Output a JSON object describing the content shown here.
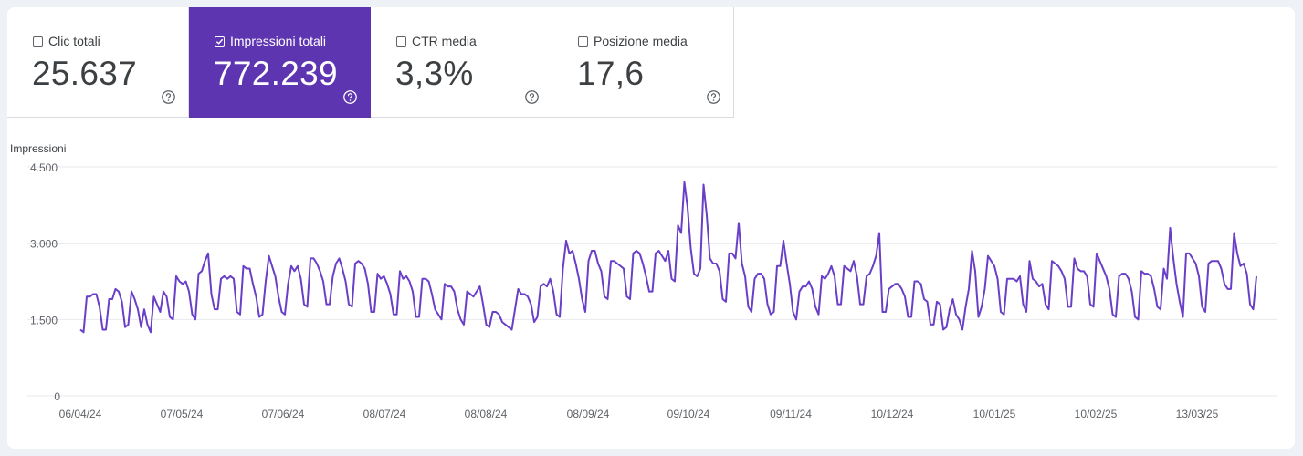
{
  "cards": [
    {
      "label": "Clic totali",
      "value": "25.637",
      "checked": false
    },
    {
      "label": "Impressioni totali",
      "value": "772.239",
      "checked": true
    },
    {
      "label": "CTR media",
      "value": "3,3%",
      "checked": false
    },
    {
      "label": "Posizione media",
      "value": "17,6",
      "checked": false
    }
  ],
  "colors": {
    "accent": "#5e35b1",
    "line": "#6a3fc8",
    "grid": "#e8eaed"
  },
  "icons": {
    "checkbox": "checkbox-icon",
    "help": "help-circle-icon"
  },
  "chart_data": {
    "type": "line",
    "ylabel": "Impressioni",
    "y_ticks": [
      "4.500",
      "3.000",
      "1.500",
      "0"
    ],
    "ylim": [
      0,
      4500
    ],
    "grid": true,
    "x_ticks": [
      "06/04/24",
      "07/05/24",
      "07/06/24",
      "08/07/24",
      "08/08/24",
      "08/09/24",
      "09/10/24",
      "09/11/24",
      "10/12/24",
      "10/01/25",
      "10/02/25",
      "13/03/25"
    ],
    "series": [
      {
        "values": [
          1300,
          1250,
          1950,
          1950,
          2000,
          2000,
          1750,
          1300,
          1300,
          1900,
          1900,
          2100,
          2050,
          1850,
          1350,
          1400,
          2050,
          1900,
          1700,
          1350,
          1700,
          1400,
          1250,
          1950,
          1800,
          1650,
          2050,
          1950,
          1550,
          1500,
          2350,
          2250,
          2200,
          2250,
          2050,
          1600,
          1500,
          2400,
          2450,
          2650,
          2800,
          2000,
          1700,
          1700,
          2300,
          2350,
          2300,
          2350,
          2300,
          1650,
          1600,
          2550,
          2500,
          2500,
          2200,
          1950,
          1550,
          1600,
          2250,
          2750,
          2550,
          2350,
          1950,
          1650,
          1600,
          2200,
          2550,
          2450,
          2550,
          2300,
          1800,
          1750,
          2700,
          2700,
          2600,
          2450,
          2250,
          1800,
          1800,
          2350,
          2600,
          2700,
          2500,
          2250,
          1800,
          1750,
          2600,
          2650,
          2600,
          2500,
          2200,
          1650,
          1650,
          2400,
          2300,
          2350,
          2200,
          2000,
          1600,
          1600,
          2450,
          2300,
          2350,
          2250,
          2050,
          1550,
          1550,
          2300,
          2300,
          2250,
          2000,
          1700,
          1600,
          1500,
          2200,
          2150,
          2150,
          2050,
          1700,
          1500,
          1400,
          2050,
          2000,
          1950,
          2050,
          2150,
          1800,
          1400,
          1350,
          1650,
          1650,
          1600,
          1450,
          1400,
          1350,
          1300,
          1700,
          2100,
          2000,
          2000,
          1950,
          1800,
          1450,
          1550,
          2150,
          2200,
          2150,
          2300,
          2050,
          1600,
          1550,
          2500,
          3050,
          2800,
          2850,
          2600,
          2300,
          1900,
          1650,
          2650,
          2850,
          2850,
          2600,
          2450,
          1950,
          1900,
          2650,
          2650,
          2600,
          2550,
          2500,
          1950,
          1900,
          2800,
          2850,
          2800,
          2600,
          2350,
          2050,
          2050,
          2800,
          2850,
          2750,
          2650,
          2850,
          2300,
          2250,
          3350,
          3200,
          4200,
          3700,
          2900,
          2400,
          2350,
          2500,
          4150,
          3550,
          2700,
          2600,
          2600,
          2450,
          1900,
          1850,
          2800,
          2800,
          2700,
          3400,
          2600,
          2350,
          1750,
          1650,
          2300,
          2400,
          2400,
          2300,
          1800,
          1600,
          1650,
          2550,
          2550,
          3050,
          2600,
          2200,
          1650,
          1500,
          2050,
          2150,
          2150,
          2250,
          2100,
          1750,
          1600,
          2350,
          2300,
          2400,
          2550,
          2350,
          1800,
          1800,
          2550,
          2500,
          2450,
          2650,
          2350,
          1800,
          1800,
          2350,
          2400,
          2550,
          2750,
          3200,
          1650,
          1650,
          2100,
          2150,
          2200,
          2200,
          2100,
          1950,
          1550,
          1550,
          2250,
          2250,
          2200,
          1900,
          1850,
          1400,
          1400,
          1850,
          1800,
          1300,
          1350,
          1700,
          1900,
          1600,
          1500,
          1300,
          1750,
          2100,
          2850,
          2450,
          1550,
          1750,
          2100,
          2750,
          2650,
          2550,
          2300,
          1650,
          1600,
          2300,
          2300,
          2300,
          2250,
          2350,
          1800,
          1650,
          2650,
          2300,
          2250,
          2150,
          2200,
          1800,
          1700,
          2650,
          2600,
          2550,
          2450,
          2300,
          1750,
          1750,
          2700,
          2500,
          2450,
          2450,
          2350,
          1800,
          1750,
          2800,
          2650,
          2500,
          2350,
          2100,
          1600,
          1550,
          2350,
          2400,
          2400,
          2300,
          2050,
          1550,
          1500,
          2450,
          2400,
          2400,
          2350,
          2100,
          1750,
          1700,
          2500,
          2300,
          3300,
          2700,
          2200,
          1850,
          1550,
          2800,
          2800,
          2700,
          2600,
          2350,
          1750,
          1650,
          2600,
          2650,
          2650,
          2650,
          2500,
          2200,
          2100,
          2100,
          3200,
          2800,
          2550,
          2600,
          2400,
          1800,
          1700,
          2350
        ]
      }
    ]
  }
}
